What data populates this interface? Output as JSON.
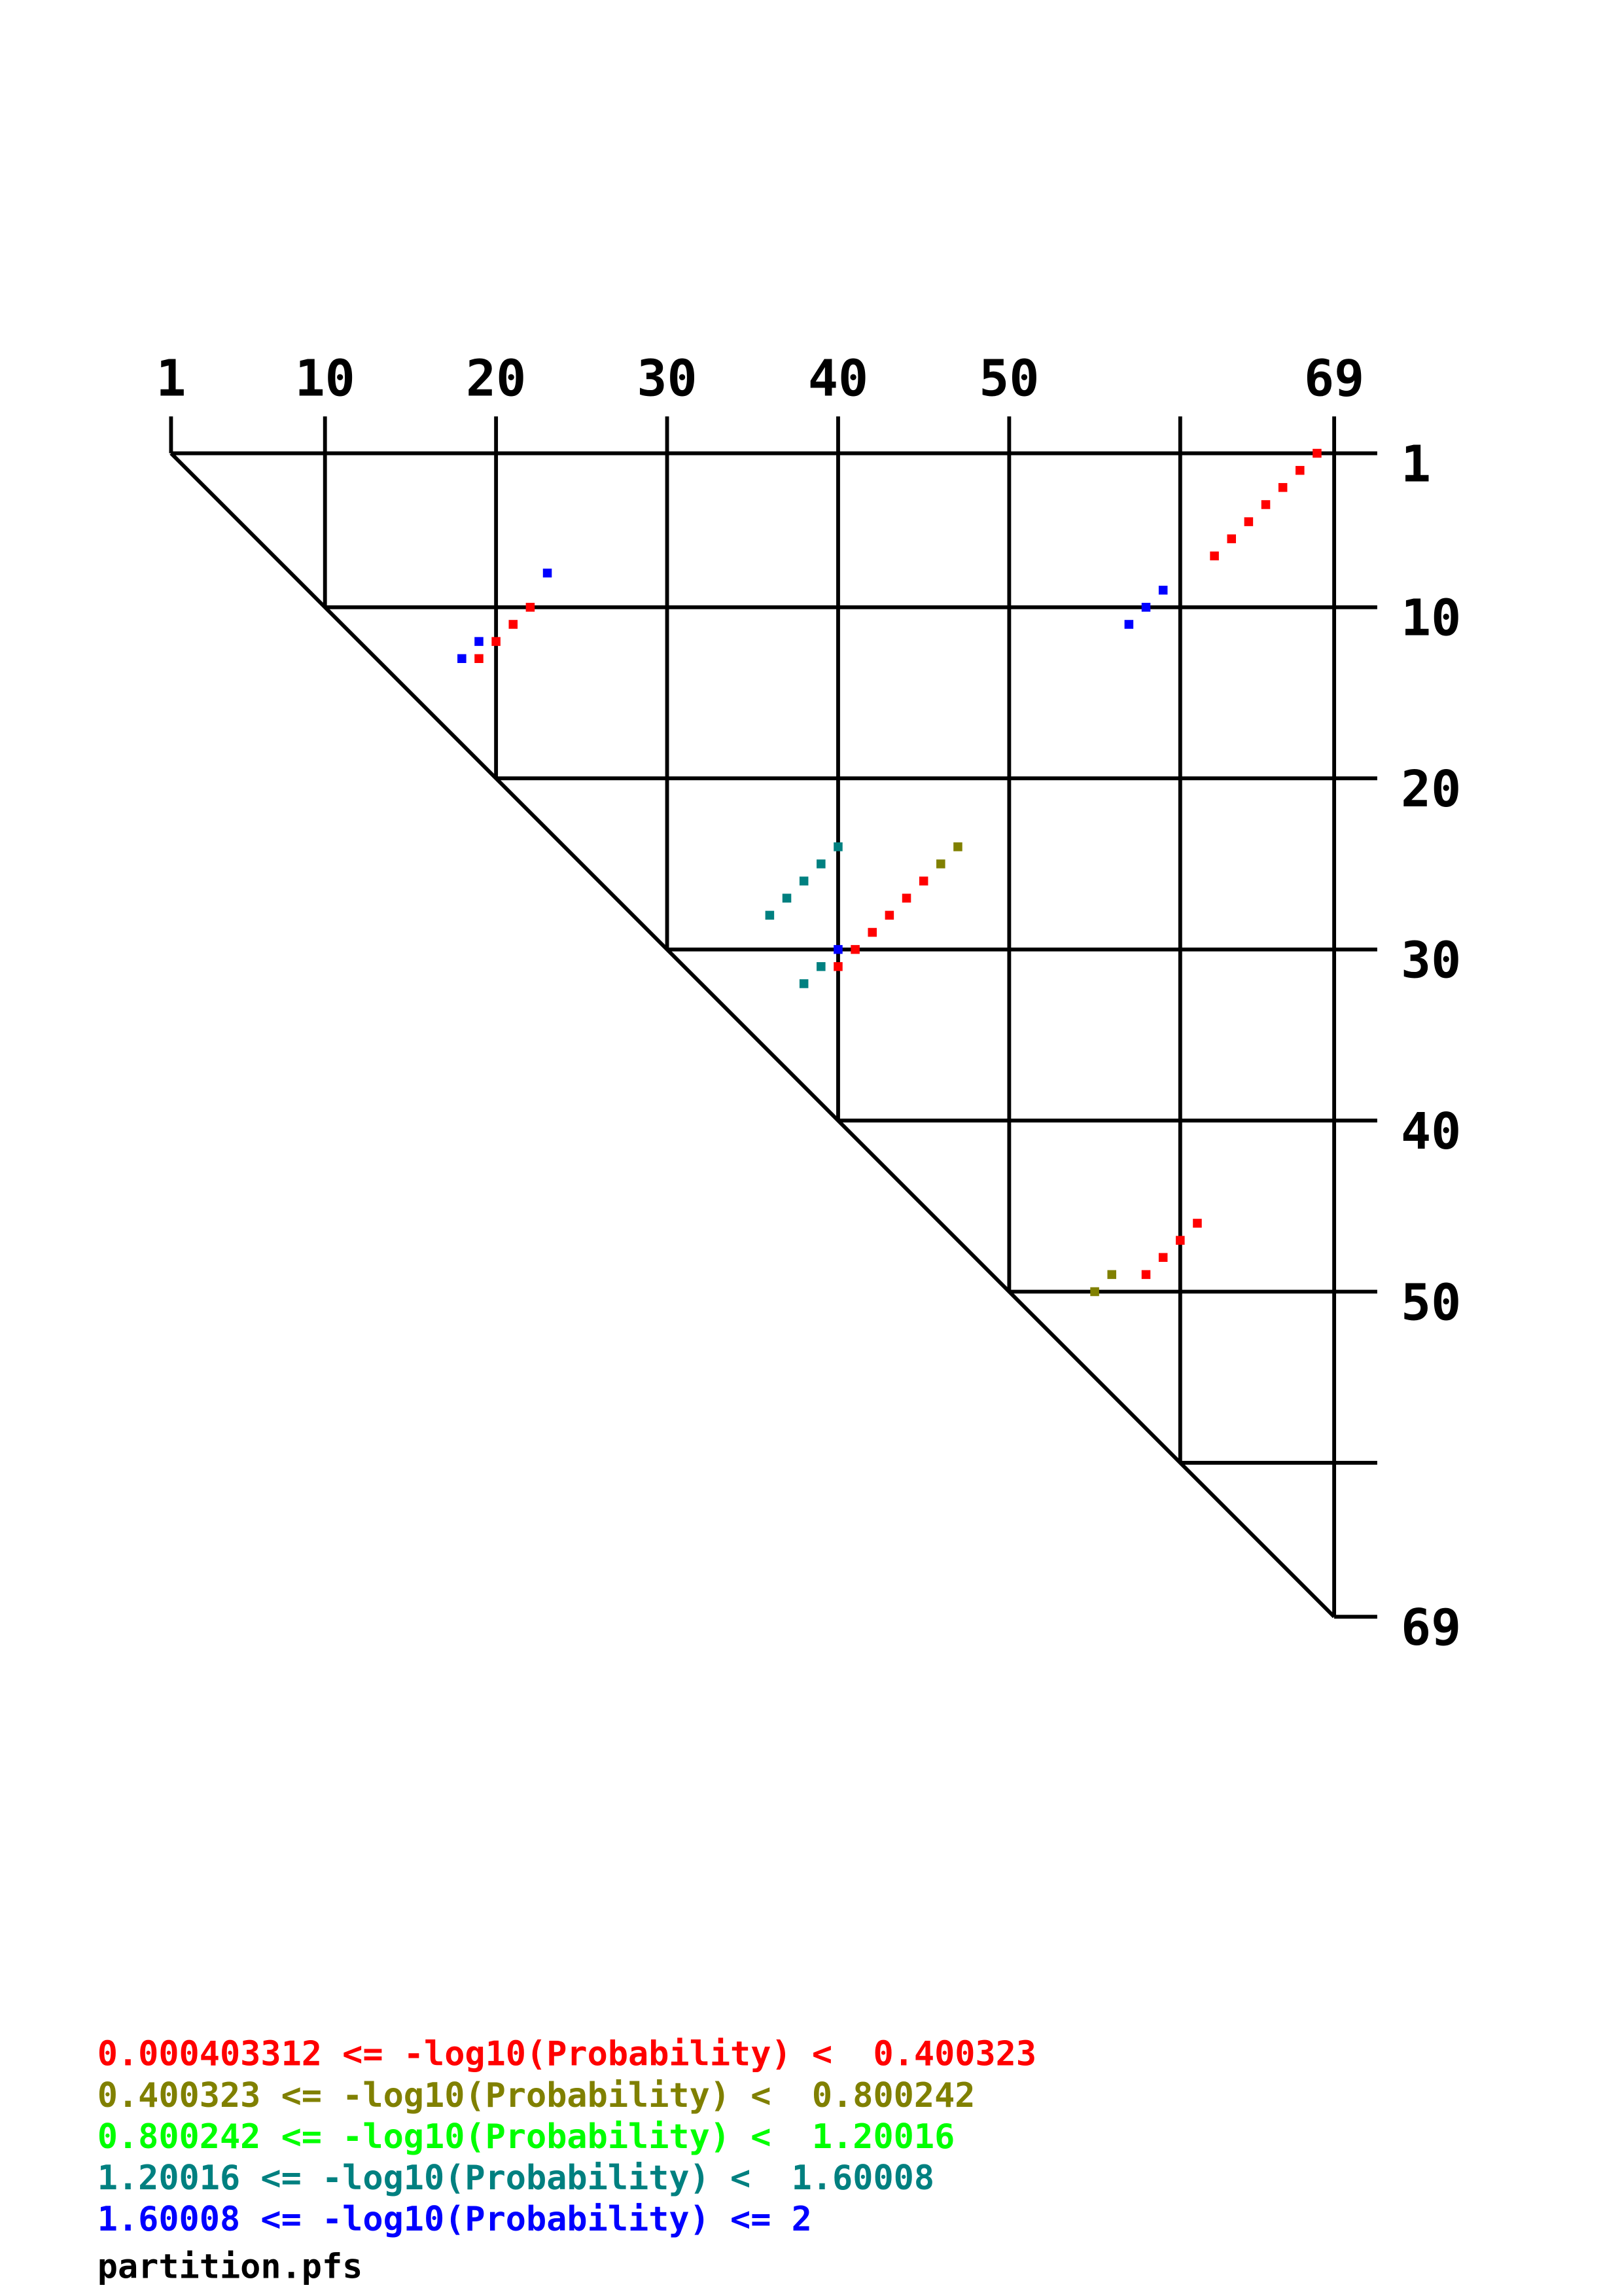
{
  "chart_data": {
    "type": "heatmap",
    "title": "",
    "sequence_range": [
      1,
      69
    ],
    "top_tick_labels": [
      "1",
      "10",
      "20",
      "30",
      "40",
      "50",
      "69"
    ],
    "top_tick_values": [
      1,
      10,
      20,
      30,
      40,
      50,
      69
    ],
    "right_tick_labels": [
      "1",
      "10",
      "20",
      "30",
      "40",
      "50",
      "",
      "69"
    ],
    "right_tick_values": [
      1,
      10,
      20,
      30,
      40,
      50,
      60,
      69
    ],
    "grid_lines": [
      1,
      10,
      20,
      30,
      40,
      50,
      60,
      69
    ],
    "legend": [
      {
        "text": "0.000403312 <= -log10(Probability) <  0.400323",
        "color": "#FF0000"
      },
      {
        "text": "0.400323 <= -log10(Probability) <  0.800242",
        "color": "#808000"
      },
      {
        "text": "0.800242 <= -log10(Probability) <  1.20016",
        "color": "#00FF00"
      },
      {
        "text": "1.20016 <= -log10(Probability) <  1.60008",
        "color": "#008080"
      },
      {
        "text": "1.60008 <= -log10(Probability) <= 2",
        "color": "#0000FF"
      }
    ],
    "legend_placement": "bottom-left",
    "filename": "partition.pfs",
    "points": [
      {
        "i": 1,
        "j": 68,
        "bin": 0
      },
      {
        "i": 2,
        "j": 67,
        "bin": 0
      },
      {
        "i": 3,
        "j": 66,
        "bin": 0
      },
      {
        "i": 4,
        "j": 65,
        "bin": 0
      },
      {
        "i": 5,
        "j": 64,
        "bin": 0
      },
      {
        "i": 6,
        "j": 63,
        "bin": 0
      },
      {
        "i": 7,
        "j": 62,
        "bin": 0
      },
      {
        "i": 9,
        "j": 59,
        "bin": 4
      },
      {
        "i": 10,
        "j": 58,
        "bin": 4
      },
      {
        "i": 11,
        "j": 57,
        "bin": 4
      },
      {
        "i": 8,
        "j": 23,
        "bin": 4
      },
      {
        "i": 10,
        "j": 22,
        "bin": 0
      },
      {
        "i": 11,
        "j": 21,
        "bin": 0
      },
      {
        "i": 12,
        "j": 20,
        "bin": 0
      },
      {
        "i": 12,
        "j": 19,
        "bin": 4
      },
      {
        "i": 13,
        "j": 18,
        "bin": 4
      },
      {
        "i": 13,
        "j": 19,
        "bin": 0
      },
      {
        "i": 24,
        "j": 40,
        "bin": 3
      },
      {
        "i": 25,
        "j": 39,
        "bin": 3
      },
      {
        "i": 26,
        "j": 38,
        "bin": 3
      },
      {
        "i": 27,
        "j": 37,
        "bin": 3
      },
      {
        "i": 28,
        "j": 36,
        "bin": 3
      },
      {
        "i": 24,
        "j": 47,
        "bin": 1
      },
      {
        "i": 25,
        "j": 46,
        "bin": 1
      },
      {
        "i": 26,
        "j": 45,
        "bin": 0
      },
      {
        "i": 27,
        "j": 44,
        "bin": 0
      },
      {
        "i": 28,
        "j": 43,
        "bin": 0
      },
      {
        "i": 29,
        "j": 42,
        "bin": 0
      },
      {
        "i": 30,
        "j": 41,
        "bin": 0
      },
      {
        "i": 30,
        "j": 40,
        "bin": 4
      },
      {
        "i": 31,
        "j": 40,
        "bin": 0
      },
      {
        "i": 31,
        "j": 39,
        "bin": 3
      },
      {
        "i": 32,
        "j": 38,
        "bin": 3
      },
      {
        "i": 46,
        "j": 61,
        "bin": 0
      },
      {
        "i": 47,
        "j": 60,
        "bin": 0
      },
      {
        "i": 48,
        "j": 59,
        "bin": 0
      },
      {
        "i": 49,
        "j": 58,
        "bin": 0
      },
      {
        "i": 49,
        "j": 56,
        "bin": 1
      },
      {
        "i": 50,
        "j": 55,
        "bin": 1
      }
    ]
  }
}
